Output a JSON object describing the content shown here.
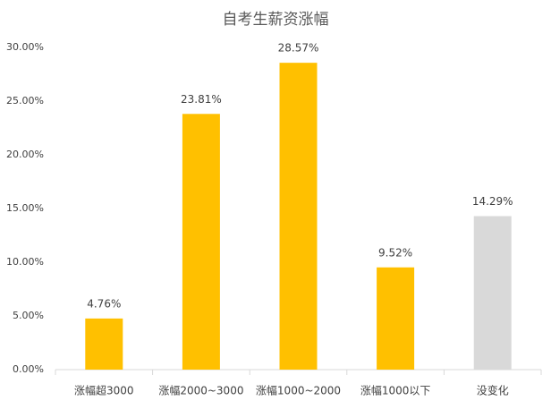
{
  "chart_data": {
    "type": "bar",
    "title": "自考生薪资涨幅",
    "categories": [
      "涨幅超3000",
      "涨幅2000~3000",
      "涨幅1000~2000",
      "涨幅1000以下",
      "没变化"
    ],
    "values": [
      4.76,
      23.81,
      28.57,
      9.52,
      14.29
    ],
    "value_labels": [
      "4.76%",
      "23.81%",
      "28.57%",
      "9.52%",
      "14.29%"
    ],
    "colors": [
      "#ffc000",
      "#ffc000",
      "#ffc000",
      "#ffc000",
      "#d9d9d9"
    ],
    "ylim": [
      0,
      30
    ],
    "yticks": [
      {
        "value": 0,
        "label": "0.00%"
      },
      {
        "value": 5,
        "label": "5.00%"
      },
      {
        "value": 10,
        "label": "10.00%"
      },
      {
        "value": 15,
        "label": "15.00%"
      },
      {
        "value": 20,
        "label": "20.00%"
      },
      {
        "value": 25,
        "label": "25.00%"
      },
      {
        "value": 30,
        "label": "30.00%"
      }
    ],
    "grid": false
  }
}
